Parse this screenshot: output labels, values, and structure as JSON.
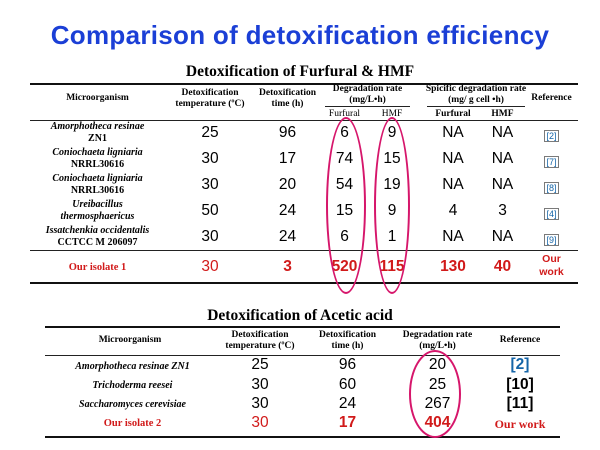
{
  "title": "Comparison of detoxification efficiency",
  "table1": {
    "title": "Detoxification of Furfural  & HMF",
    "headers": {
      "microorganism": "Microorganism",
      "temperature": "Detoxification temperature (ºC)",
      "time": "Detoxification time (h)",
      "degradation_rate": "Degradation rate (mg/L•h)",
      "furfural": "Furfural",
      "hmf": "HMF",
      "specific_rate": "Spicific degradation rate (mg/ g cell •h)",
      "sp_furfural": "Furfural",
      "sp_hmf": "HMF",
      "reference": "Reference"
    },
    "rows": [
      {
        "org_italic": "Amorphotheca resinae",
        "org_plain": "ZN1",
        "temp": "25",
        "time": "96",
        "furfural": "6",
        "hmf": "9",
        "sp_furfural": "NA",
        "sp_hmf": "NA",
        "ref": "[2]"
      },
      {
        "org_italic": "Coniochaeta  ligniaria",
        "org_plain": "NRRL30616",
        "temp": "30",
        "time": "17",
        "furfural": "74",
        "hmf": "15",
        "sp_furfural": "NA",
        "sp_hmf": "NA",
        "ref": "[7]"
      },
      {
        "org_italic": "Coniochaeta  ligniaria",
        "org_plain": "NRRL30616",
        "temp": "30",
        "time": "20",
        "furfural": "54",
        "hmf": "19",
        "sp_furfural": "NA",
        "sp_hmf": "NA",
        "ref": "[8]"
      },
      {
        "org_italic": "Ureibacillus",
        "org_plain": "thermosphaericus",
        "temp": "50",
        "time": "24",
        "furfural": "15",
        "hmf": "9",
        "sp_furfural": "4",
        "sp_hmf": "3",
        "ref": "[4]"
      },
      {
        "org_italic": "Issatchenkia occidentalis",
        "org_plain": "CCTCC M 206097",
        "temp": "30",
        "time": "24",
        "furfural": "6",
        "hmf": "1",
        "sp_furfural": "NA",
        "sp_hmf": "NA",
        "ref": "[9]"
      }
    ],
    "our_row": {
      "org": "Our isolate 1",
      "temp": "30",
      "time": "3",
      "furfural": "520",
      "hmf": "115",
      "sp_furfural": "130",
      "sp_hmf": "40",
      "ref_line1": "Our",
      "ref_line2": "work"
    }
  },
  "table2": {
    "title": "Detoxification of Acetic acid",
    "headers": {
      "microorganism": "Microorganism",
      "temperature": "Detoxification temperature (ºC)",
      "time": "Detoxification time (h)",
      "degradation_rate": "Degradation rate (mg/L•h)",
      "reference": "Reference"
    },
    "rows": [
      {
        "org": "Amorphotheca resinae ZN1",
        "temp": "25",
        "time": "96",
        "rate": "20",
        "ref": "[2]"
      },
      {
        "org": "Trichoderma reesei",
        "temp": "30",
        "time": "60",
        "rate": "25",
        "ref": "[10]"
      },
      {
        "org": "Saccharomyces cerevisiae",
        "temp": "30",
        "time": "24",
        "rate": "267",
        "ref": "[11]"
      }
    ],
    "our_row": {
      "org": "Our isolate 2",
      "temp": "30",
      "time": "17",
      "rate": "404",
      "ref": "Our work"
    }
  },
  "colors": {
    "title_blue": "#1b3fd6",
    "highlight_red": "#d11a1a",
    "oval_magenta": "#d6166b",
    "ref_blue": "#1565a8"
  }
}
